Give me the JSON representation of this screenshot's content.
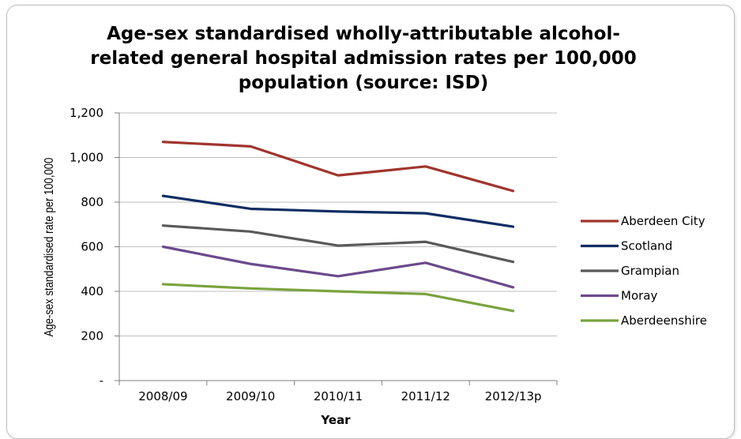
{
  "chart_data": {
    "type": "line",
    "title_lines": [
      "Age-sex standardised wholly-attributable alcohol-",
      "related general hospital admission rates per 100,000",
      "population (source: ISD)"
    ],
    "xlabel": "Year",
    "ylabel": "Age-sex standardised rate per 100,000",
    "categories": [
      "2008/09",
      "2009/10",
      "2010/11",
      "2011/12",
      "2012/13p"
    ],
    "y_ticks": [
      "-",
      "200",
      "400",
      "600",
      "800",
      "1,000",
      "1,200"
    ],
    "y_tick_values": [
      0,
      200,
      400,
      600,
      800,
      1000,
      1200
    ],
    "ylim": [
      0,
      1200
    ],
    "grid": "horizontal",
    "legend_position": "right",
    "series": [
      {
        "name": "Aberdeen City",
        "color": "#a0342d",
        "values": [
          1070,
          1050,
          920,
          960,
          850
        ]
      },
      {
        "name": "Scotland",
        "color": "#0f2d63",
        "values": [
          828,
          770,
          758,
          750,
          690
        ]
      },
      {
        "name": "Grampian",
        "color": "#595959",
        "values": [
          695,
          668,
          605,
          622,
          532
        ]
      },
      {
        "name": "Moray",
        "color": "#6b4a8c",
        "values": [
          600,
          523,
          468,
          528,
          418
        ]
      },
      {
        "name": "Aberdeenshire",
        "color": "#7aa33e",
        "values": [
          432,
          413,
          400,
          388,
          312
        ]
      }
    ]
  }
}
